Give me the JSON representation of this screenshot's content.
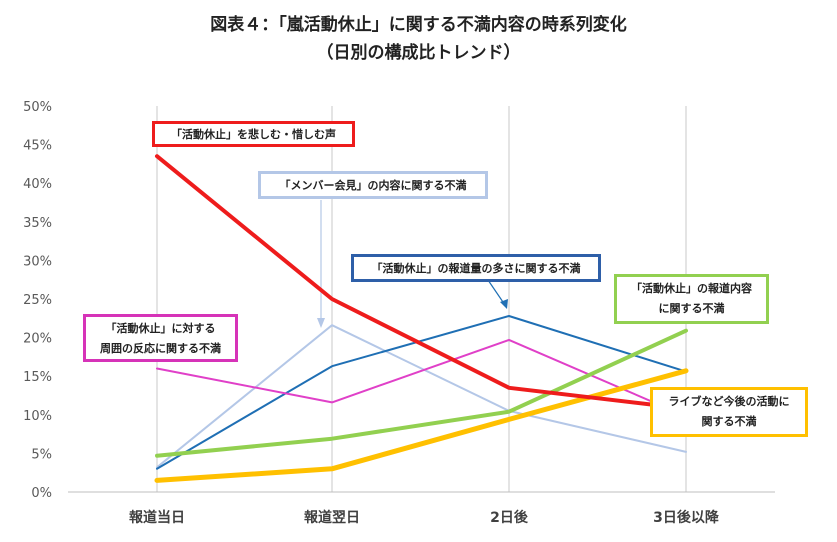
{
  "chart_data": {
    "type": "line",
    "title": "図表４：「嵐活動休止」に関する不満内容の時系列変化",
    "subtitle": "（日別の構成比トレンド）",
    "categories": [
      "報道当日",
      "報道翌日",
      "2日後",
      "3日後以降"
    ],
    "yticks": [
      "0%",
      "5%",
      "10%",
      "15%",
      "20%",
      "25%",
      "30%",
      "35%",
      "40%",
      "45%",
      "50%"
    ],
    "ylim": [
      0,
      50
    ],
    "grid": "vertical lines at categories",
    "series": [
      {
        "name": "「活動休止」を悲しむ・惜しむ声",
        "color": "#ee1c1c",
        "width": 4,
        "values": [
          43.5,
          25.0,
          13.5,
          10.8
        ]
      },
      {
        "name": "「メンバー会見」の内容に関する不満",
        "color": "#b4c7e7",
        "width": 2,
        "values": [
          3.2,
          21.6,
          10.5,
          5.2
        ]
      },
      {
        "name": "「活動休止」の報道量の多さに関する不満",
        "color": "#1f6fb4",
        "width": 2,
        "values": [
          3.0,
          16.3,
          22.8,
          15.6
        ]
      },
      {
        "name": "「活動休止」の報道内容に関する不満",
        "color": "#92d050",
        "width": 4,
        "values": [
          4.7,
          6.9,
          10.4,
          20.9
        ]
      },
      {
        "name": "「活動休止」に対する周囲の反応に関する不満",
        "color": "#e040c8",
        "width": 2,
        "values": [
          16.0,
          11.6,
          19.7,
          9.8
        ]
      },
      {
        "name": "ライブなど今後の活動に関する不満",
        "color": "#ffc000",
        "width": 5,
        "values": [
          1.5,
          3.0,
          9.4,
          15.7
        ]
      }
    ],
    "annotations": [
      {
        "id": "red",
        "lines": [
          "「活動休止」を悲しむ・惜しむ声"
        ],
        "border": "#ee1c1c"
      },
      {
        "id": "lightblue",
        "lines": [
          "「メンバー会見」の内容に関する不満"
        ],
        "border": "#b4c7e7"
      },
      {
        "id": "blue",
        "lines": [
          "「活動休止」の報道量の多さに関する不満"
        ],
        "border": "#2e5fa8"
      },
      {
        "id": "green",
        "lines": [
          "「活動休止」の報道内容",
          "に関する不満"
        ],
        "border": "#92d050"
      },
      {
        "id": "magenta",
        "lines": [
          "「活動休止」に対する",
          "周囲の反応に関する不満"
        ],
        "border": "#d633b8"
      },
      {
        "id": "yellow",
        "lines": [
          "ライブなど今後の活動に",
          "関する不満"
        ],
        "border": "#ffc000"
      }
    ]
  }
}
